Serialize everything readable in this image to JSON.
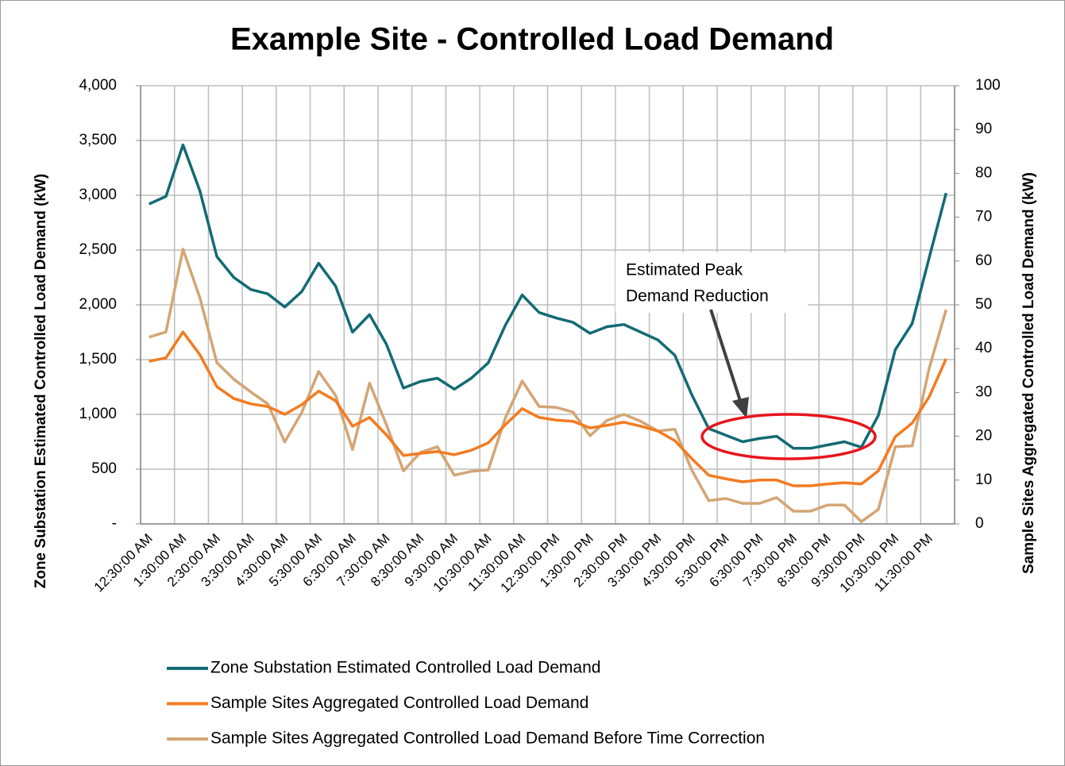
{
  "chart_data": {
    "type": "line",
    "title": "Example Site - Controlled Load Demand",
    "y_label": "Zone Substation Estimated Controlled Load Demand (kW)",
    "y2_label": "Sample Sites Aggregated Controlled Load Demand (kW)",
    "annotation_lines": [
      "Estimated Peak",
      "Demand Reduction"
    ],
    "categories": [
      "12:30:00 AM",
      null,
      "1:30:00 AM",
      null,
      "2:30:00 AM",
      null,
      "3:30:00 AM",
      null,
      "4:30:00 AM",
      null,
      "5:30:00 AM",
      null,
      "6:30:00 AM",
      null,
      "7:30:00 AM",
      null,
      "8:30:00 AM",
      null,
      "9:30:00 AM",
      null,
      "10:30:00 AM",
      null,
      "11:30:00 AM",
      null,
      "12:30:00 PM",
      null,
      "1:30:00 PM",
      null,
      "2:30:00 PM",
      null,
      "3:30:00 PM",
      null,
      "4:30:00 PM",
      null,
      "5:30:00 PM",
      null,
      "6:30:00 PM",
      null,
      "7:30:00 PM",
      null,
      "8:30:00 PM",
      null,
      "9:30:00 PM",
      null,
      "10:30:00 PM",
      null,
      "11:30:00 PM",
      null
    ],
    "series": [
      {
        "name": "Zone Substation Estimated Controlled Load Demand",
        "color": "#136b74",
        "values": [
          2920,
          2990,
          3460,
          3040,
          2440,
          2250,
          2140,
          2100,
          1980,
          2120,
          2380,
          2170,
          1750,
          1910,
          1640,
          1240,
          1300,
          1330,
          1230,
          1330,
          1470,
          1810,
          2090,
          1930,
          1880,
          1840,
          1740,
          1800,
          1820,
          1750,
          1680,
          1540,
          1180,
          870,
          810,
          750,
          780,
          800,
          690,
          690,
          720,
          750,
          700,
          990,
          1590,
          1830,
          2430,
          3020
        ]
      },
      {
        "name": "Sample Sites Aggregated Controlled Load Demand",
        "color": "#f47b20",
        "axis": "y2",
        "values": [
          37.1,
          37.9,
          43.8,
          38.6,
          31.3,
          28.6,
          27.4,
          26.8,
          25,
          27.2,
          30.3,
          28.1,
          22.3,
          24.3,
          20.3,
          15.6,
          16.1,
          16.5,
          15.8,
          16.8,
          18.5,
          22.6,
          26.3,
          24.3,
          23.7,
          23.4,
          21.9,
          22.5,
          23.2,
          22.3,
          21.2,
          19,
          14.9,
          11.1,
          10.3,
          9.6,
          10,
          10,
          8.7,
          8.7,
          9.1,
          9.4,
          9.1,
          12.1,
          19.9,
          23,
          29,
          37.7
        ]
      },
      {
        "name": "Sample Sites Aggregated Controlled Load Demand Before Time Correction",
        "color": "#d4a574",
        "axis": "y2",
        "values": [
          42.6,
          43.8,
          62.7,
          51.6,
          36.8,
          33,
          30.1,
          27.4,
          18.7,
          25.4,
          34.8,
          29.3,
          17,
          32.1,
          22.6,
          12.1,
          16.3,
          17.6,
          11.1,
          12,
          12.3,
          24.1,
          32.6,
          26.8,
          26.6,
          25.5,
          20.1,
          23.6,
          25,
          23.4,
          21.2,
          21.6,
          12.3,
          5.3,
          5.8,
          4.7,
          4.7,
          6,
          2.9,
          2.9,
          4.3,
          4.3,
          0.5,
          3.3,
          17.6,
          17.8,
          35.5,
          48.9
        ]
      }
    ],
    "ylim": [
      0,
      4000
    ],
    "yticks": [
      {
        "value": 0,
        "label": "-"
      },
      {
        "value": 500,
        "label": "500"
      },
      {
        "value": 1000,
        "label": "1,000"
      },
      {
        "value": 1500,
        "label": "1,500"
      },
      {
        "value": 2000,
        "label": "2,000"
      },
      {
        "value": 2500,
        "label": "2,500"
      },
      {
        "value": 3000,
        "label": "3,000"
      },
      {
        "value": 3500,
        "label": "3,500"
      },
      {
        "value": 4000,
        "label": "4,000"
      }
    ],
    "y2lim": [
      0,
      100
    ],
    "y2ticks": [
      0,
      10,
      20,
      30,
      40,
      50,
      60,
      70,
      80,
      90,
      100
    ],
    "grid": true,
    "legend": "bottom"
  }
}
